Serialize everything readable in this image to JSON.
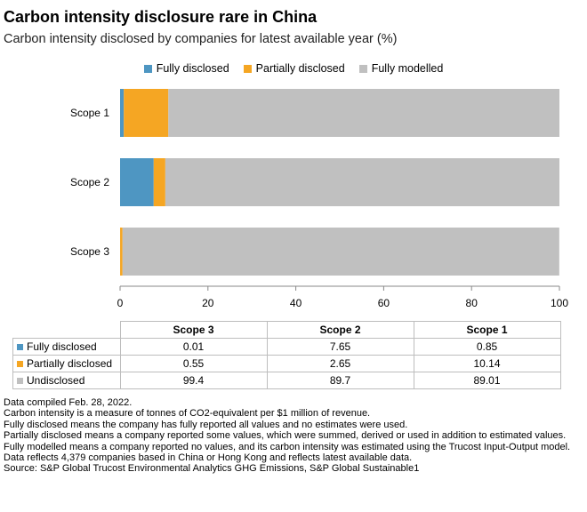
{
  "title": "Carbon intensity disclosure rare in China",
  "subtitle": "Carbon intensity disclosed by companies for latest available year (%)",
  "colors": {
    "fully_disclosed": "#4e96c2",
    "partially_disclosed": "#f5a623",
    "modelled": "#c0c0c0"
  },
  "legend": [
    "Fully disclosed",
    "Partially disclosed",
    "Fully modelled"
  ],
  "chart_data": {
    "type": "bar",
    "orientation": "horizontal",
    "stacked": true,
    "categories": [
      "Scope 1",
      "Scope 2",
      "Scope 3"
    ],
    "series": [
      {
        "name": "Fully disclosed",
        "values": [
          0.85,
          7.65,
          0.01
        ]
      },
      {
        "name": "Partially disclosed",
        "values": [
          10.14,
          2.65,
          0.55
        ]
      },
      {
        "name": "Fully modelled",
        "values": [
          89.01,
          89.7,
          99.4
        ]
      }
    ],
    "xlim": [
      0,
      100
    ],
    "x_ticks": [
      "0",
      "20",
      "40",
      "60",
      "80",
      "100"
    ],
    "legend_position": "top"
  },
  "table": {
    "columns": [
      "Scope 3",
      "Scope 2",
      "Scope 1"
    ],
    "rows": [
      {
        "label": "Fully disclosed",
        "values": [
          "0.01",
          "7.65",
          "0.85"
        ]
      },
      {
        "label": "Partially disclosed",
        "values": [
          "0.55",
          "2.65",
          "10.14"
        ]
      },
      {
        "label": "Undisclosed",
        "values": [
          "99.4",
          "89.7",
          "89.01"
        ]
      }
    ]
  },
  "notes": [
    "Data compiled Feb. 28, 2022.",
    "Carbon intensity is a measure of tonnes of CO2-equivalent per $1 million of revenue.",
    "Fully disclosed means the company has fully reported all values and no estimates were used.",
    "Partially disclosed means a company reported some values, which were summed, derived or used in addition to estimated values.",
    "Fully modelled means a company reported no values, and its carbon intensity was estimated using the Trucost Input-Output model.",
    "Data reflects 4,379 companies based in China or Hong Kong and reflects latest available data.",
    "Source: S&P Global Trucost Environmental Analytics GHG Emissions, S&P Global Sustainable1"
  ]
}
